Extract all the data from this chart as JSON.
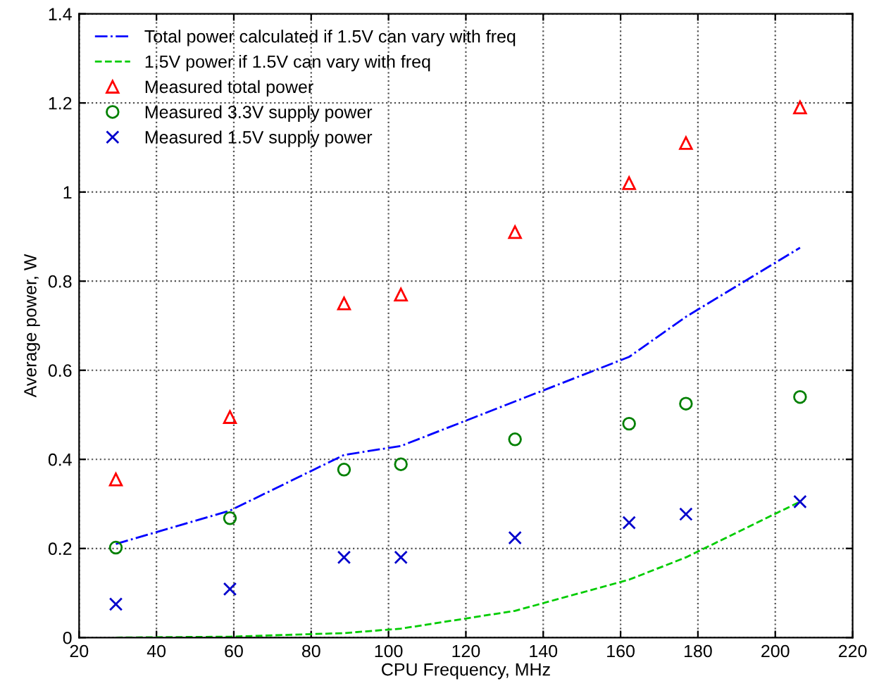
{
  "chart_data": {
    "type": "line",
    "xlabel": "CPU Frequency, MHz",
    "ylabel": "Average power, W",
    "x": [
      29.5,
      59,
      88.5,
      103.2,
      132.7,
      162.2,
      176.9,
      206.4
    ],
    "series": [
      {
        "name": "Total power calculated if 1.5V can vary with freq",
        "color": "#0000ff",
        "line_style": "dashdot",
        "marker": "none",
        "values": [
          0.21,
          0.285,
          0.41,
          0.43,
          0.53,
          0.63,
          0.72,
          0.875
        ]
      },
      {
        "name": "1.5V power if 1.5V can vary with freq",
        "color": "#00cc00",
        "line_style": "dashed",
        "marker": "none",
        "values": [
          0.0,
          0.002,
          0.01,
          0.02,
          0.06,
          0.13,
          0.18,
          0.305
        ]
      },
      {
        "name": "Measured total power",
        "type": "scatter",
        "color": "#ff0000",
        "marker": "triangle",
        "values": [
          0.355,
          0.495,
          0.75,
          0.77,
          0.91,
          1.02,
          1.11,
          1.19
        ]
      },
      {
        "name": "Measured 3.3V supply power",
        "type": "scatter",
        "color": "#008000",
        "marker": "circle",
        "values": [
          0.202,
          0.268,
          0.377,
          0.389,
          0.445,
          0.48,
          0.525,
          0.54
        ]
      },
      {
        "name": "Measured 1.5V supply power",
        "type": "scatter",
        "color": "#0000cc",
        "marker": "cross",
        "values": [
          0.075,
          0.109,
          0.18,
          0.18,
          0.224,
          0.258,
          0.277,
          0.305
        ]
      }
    ],
    "xlim": [
      20,
      220
    ],
    "xticks": [
      20,
      40,
      60,
      80,
      100,
      120,
      140,
      160,
      180,
      200,
      220
    ],
    "ylim": [
      0,
      1.4
    ],
    "yticks": [
      0,
      0.2,
      0.4,
      0.6,
      0.8,
      1,
      1.2,
      1.4
    ],
    "grid": true,
    "legend": "top left"
  }
}
